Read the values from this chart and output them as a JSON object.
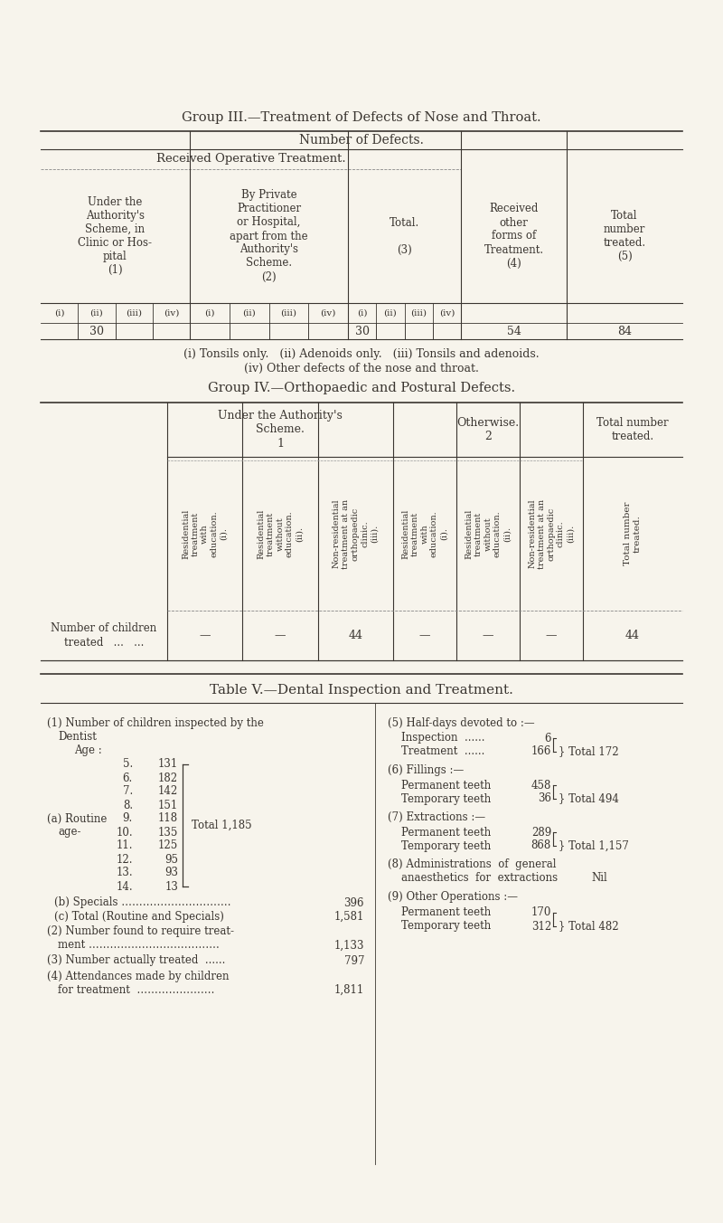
{
  "bg_color": "#f7f4ec",
  "text_color": "#3a3530",
  "title3": "Group III.—Treatment of Defects of Nose and Throat.",
  "title4": "Group IV.—Orthopaedic and Postural Defects.",
  "title5": "Table V.—Dental Inspection and Treatment.",
  "group3": {
    "footnote1": "(i) Tonsils only.   (ii) Adenoids only.   (iii) Tonsils and adenoids.",
    "footnote2": "(iv) Other defects of the nose and throat."
  },
  "group4": {
    "data": [
      "—",
      "—",
      "44",
      "—",
      "—",
      "—",
      "44"
    ]
  },
  "dental": {
    "ages": [
      [
        "5.",
        "131"
      ],
      [
        "6.",
        "182"
      ],
      [
        "7.",
        "142"
      ],
      [
        "8.",
        "151"
      ],
      [
        "9.",
        "118"
      ],
      [
        "10.",
        "135"
      ],
      [
        "11.",
        "125"
      ],
      [
        "12.",
        "95"
      ],
      [
        "13.",
        "93"
      ],
      [
        "14.",
        "13"
      ]
    ]
  }
}
